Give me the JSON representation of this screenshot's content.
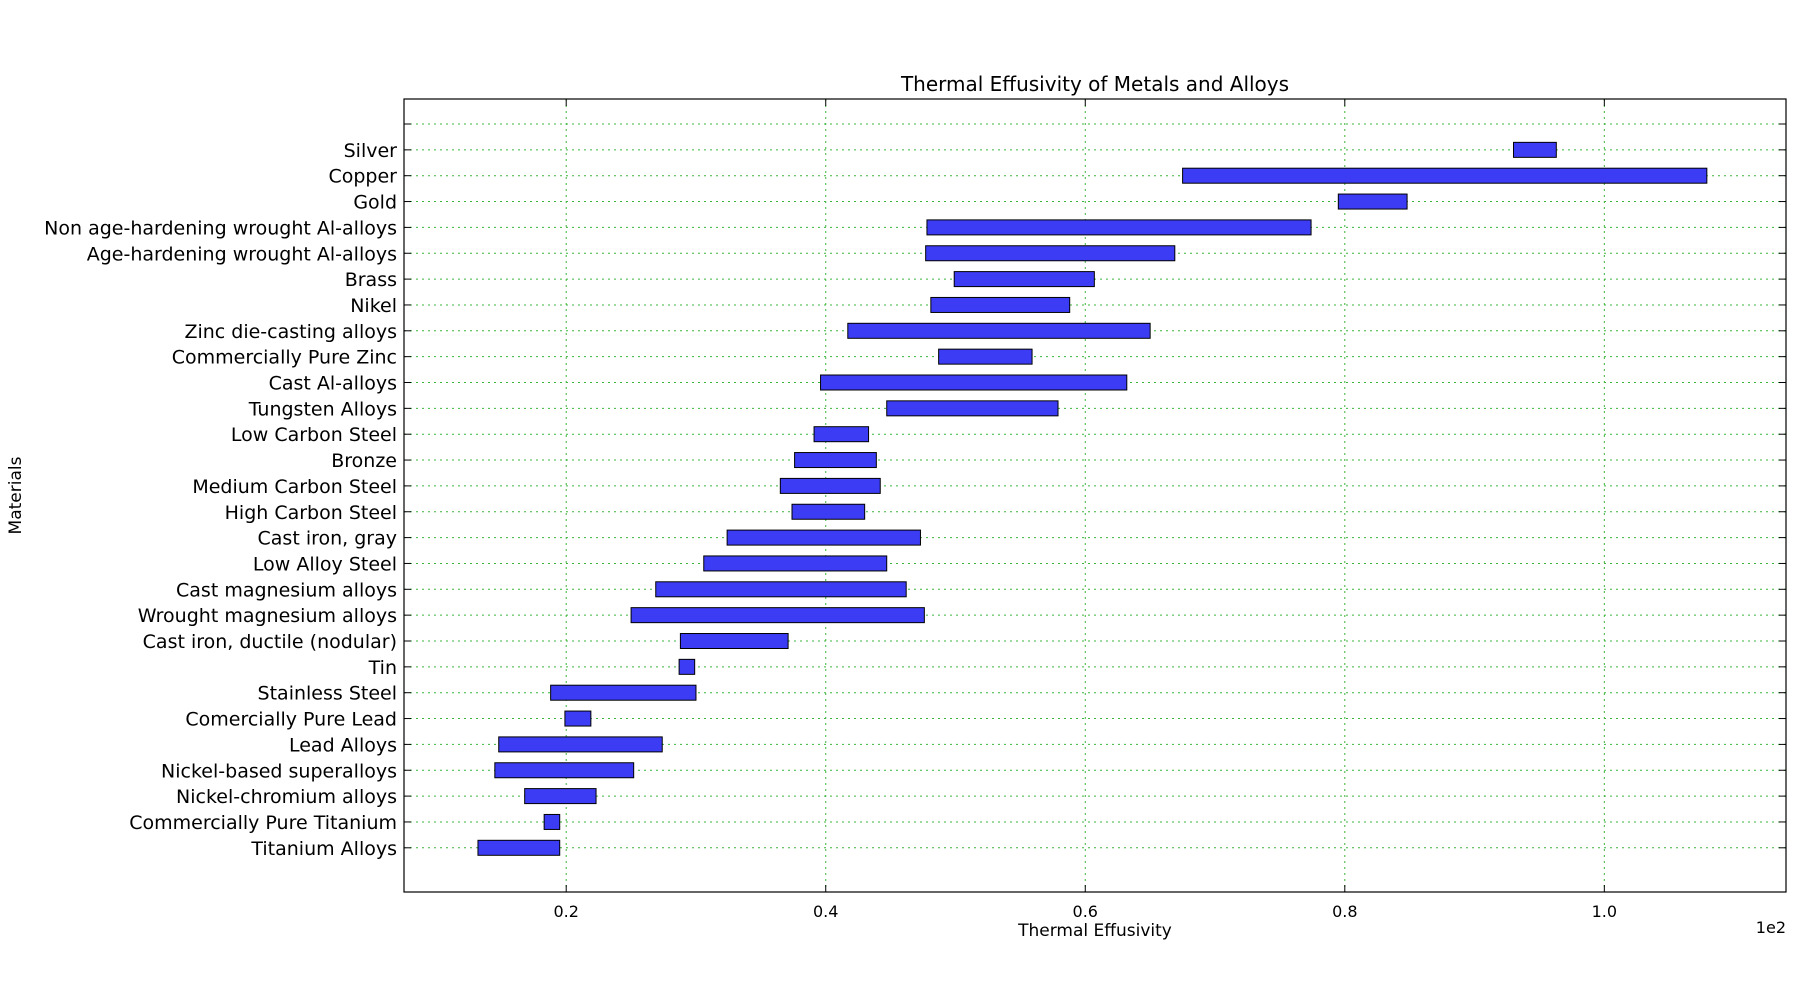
{
  "chart_data": {
    "type": "bar",
    "orientation": "horizontal-range",
    "title": "Thermal Effusivity of Metals and Alloys",
    "xlabel": "Thermal Effusivity",
    "ylabel": "Materials",
    "x_offset_label": "1e2",
    "xlim": [
      7.5,
      114.0
    ],
    "xticks": [
      20,
      40,
      60,
      80,
      100
    ],
    "xtick_labels": [
      "0.2",
      "0.4",
      "0.6",
      "0.8",
      "1.0"
    ],
    "grid": true,
    "bar_color": "#3c3cf5",
    "grid_color": "#3cb43c",
    "categories": [
      "Titanium Alloys",
      "Commercially Pure Titanium",
      "Nickel-chromium alloys",
      "Nickel-based superalloys",
      "Lead Alloys",
      "Comercially Pure Lead",
      "Stainless Steel",
      "Tin",
      "Cast iron, ductile (nodular)",
      "Wrought magnesium alloys",
      "Cast magnesium alloys",
      "Low Alloy Steel",
      "Cast iron, gray",
      "High Carbon Steel",
      "Medium Carbon Steel",
      "Bronze",
      "Low Carbon Steel",
      "Tungsten Alloys",
      "Cast Al-alloys",
      "Commercially Pure Zinc",
      "Zinc die-casting alloys",
      "Nikel",
      "Brass",
      "Age-hardening wrought Al-alloys",
      "Non age-hardening wrought Al-alloys",
      "Gold",
      "Copper",
      "Silver"
    ],
    "ranges": [
      [
        13.2,
        19.5
      ],
      [
        18.3,
        19.5
      ],
      [
        16.8,
        22.3
      ],
      [
        14.5,
        25.2
      ],
      [
        14.8,
        27.4
      ],
      [
        19.9,
        21.9
      ],
      [
        18.8,
        30.0
      ],
      [
        28.7,
        29.9
      ],
      [
        28.8,
        37.1
      ],
      [
        25.0,
        47.6
      ],
      [
        26.9,
        46.2
      ],
      [
        30.6,
        44.7
      ],
      [
        32.4,
        47.3
      ],
      [
        37.4,
        43.0
      ],
      [
        36.5,
        44.2
      ],
      [
        37.6,
        43.9
      ],
      [
        39.1,
        43.3
      ],
      [
        44.7,
        57.9
      ],
      [
        39.6,
        63.2
      ],
      [
        48.7,
        55.9
      ],
      [
        41.7,
        65.0
      ],
      [
        48.1,
        58.8
      ],
      [
        49.9,
        60.7
      ],
      [
        47.7,
        66.9
      ],
      [
        47.8,
        77.4
      ],
      [
        79.5,
        84.8
      ],
      [
        67.5,
        107.9
      ],
      [
        93.0,
        96.3
      ]
    ]
  }
}
